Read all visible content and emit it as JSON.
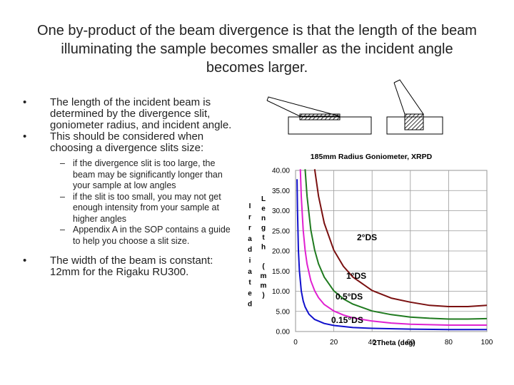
{
  "slide": {
    "title_lines": [
      "One by-product of the beam divergence is that the length of the beam",
      "illuminating the sample becomes smaller as the incident angle",
      "becomes larger."
    ],
    "bullets": [
      "The length of the incident beam is determined by the divergence slit, goniometer radius, and incident angle.",
      "This should be considered when choosing a divergence slits size:"
    ],
    "subbullets": [
      "if the divergence slit is too large, the beam may be significantly longer than your sample at low angles",
      "if the slit is too small, you may not get enough intensity from your sample at higher angles",
      "Appendix A in the SOP contains a guide to help you choose a slit size."
    ],
    "last_bullet": "The width of the beam is constant: 12mm for the Rigaku RU300.",
    "bullet_char": "•",
    "dash_char": "–"
  },
  "chart_data": {
    "type": "line",
    "title": "185mm Radius Goniometer, XRPD",
    "xlabel": "2Theta (deg)",
    "ylabel_left": [
      "I",
      "r",
      "r",
      "a",
      "d",
      "i",
      "a",
      "t",
      "e",
      "d"
    ],
    "ylabel_right": [
      "L",
      "e",
      "n",
      "g",
      "t",
      "h",
      "",
      "(",
      "m",
      "m",
      ")"
    ],
    "xlim": [
      0,
      100
    ],
    "ylim": [
      0,
      40
    ],
    "x_ticks": [
      0,
      20,
      40,
      60,
      80,
      100
    ],
    "y_ticks": [
      "0.00",
      "5.00",
      "10.00",
      "15.00",
      "20.00",
      "25.00",
      "30.00",
      "35.00",
      "40.00"
    ],
    "grid": true,
    "series": [
      {
        "name": "2°DS",
        "color": "#7a1010",
        "x": [
          10,
          12,
          15,
          20,
          25,
          30,
          40,
          50,
          60,
          70,
          80,
          90,
          100
        ],
        "y": [
          40.3,
          33.6,
          26.9,
          20.2,
          16.2,
          13.5,
          10.2,
          8.3,
          7.3,
          6.5,
          6.2,
          6.2,
          6.5
        ]
      },
      {
        "name": "1°DS",
        "color": "#1f7a1f",
        "x": [
          5,
          6,
          8,
          10,
          12,
          15,
          20,
          25,
          30,
          40,
          50,
          60,
          70,
          80,
          90,
          100
        ],
        "y": [
          40.3,
          33.6,
          25.2,
          20.2,
          16.8,
          13.5,
          10.1,
          8.1,
          6.8,
          5.1,
          4.2,
          3.6,
          3.3,
          3.1,
          3.1,
          3.2
        ]
      },
      {
        "name": "0.5°DS",
        "color": "#e020d0",
        "x": [
          2.5,
          3,
          4,
          5,
          6,
          8,
          10,
          12,
          15,
          20,
          25,
          30,
          40,
          50,
          60,
          70,
          80,
          90,
          100
        ],
        "y": [
          40.3,
          33.6,
          25.2,
          20.2,
          16.8,
          12.6,
          10.1,
          8.4,
          6.7,
          5.1,
          4.1,
          3.4,
          2.6,
          2.1,
          1.8,
          1.7,
          1.6,
          1.6,
          1.6
        ]
      },
      {
        "name": "0.15°DS",
        "color": "#1010cc",
        "x": [
          0.8,
          1,
          1.5,
          2,
          3,
          4,
          5,
          7,
          10,
          15,
          20,
          30,
          40,
          60,
          80,
          100
        ],
        "y": [
          37.8,
          30.3,
          20.2,
          15.1,
          10.1,
          7.6,
          6.1,
          4.3,
          3.0,
          2.0,
          1.5,
          1.0,
          0.8,
          0.6,
          0.5,
          0.5
        ]
      }
    ],
    "annotations": [
      "2°DS",
      "1°DS",
      "0.5°DS",
      "0.15°DS"
    ]
  }
}
